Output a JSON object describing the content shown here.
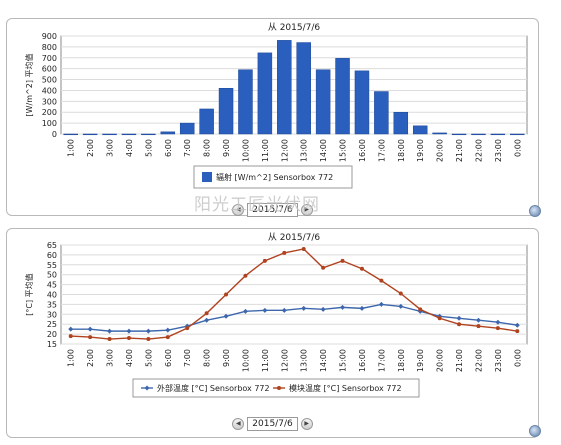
{
  "chart_data": [
    {
      "type": "bar",
      "title": "从 2015/7/6",
      "ylabel": "[W/m^2] 平均值",
      "ylim": [
        0,
        900
      ],
      "yticks": [
        0,
        100,
        200,
        300,
        400,
        500,
        600,
        700,
        800,
        900
      ],
      "categories": [
        "1:00",
        "2:00",
        "3:00",
        "4:00",
        "5:00",
        "6:00",
        "7:00",
        "8:00",
        "9:00",
        "10:00",
        "11:00",
        "12:00",
        "13:00",
        "14:00",
        "15:00",
        "16:00",
        "17:00",
        "18:00",
        "19:00",
        "20:00",
        "21:00",
        "22:00",
        "23:00",
        "0:00"
      ],
      "series": [
        {
          "name": "辐射 [W/m^2] Sensorbox 772",
          "color": "#2a5fbd",
          "values": [
            0,
            0,
            0,
            0,
            0,
            20,
            100,
            230,
            420,
            590,
            745,
            860,
            840,
            590,
            695,
            580,
            390,
            200,
            75,
            10,
            0,
            0,
            0,
            0
          ]
        }
      ],
      "grid": true,
      "legend": "bottom"
    },
    {
      "type": "line",
      "title": "从 2015/7/6",
      "ylabel": "[°C] 平均值",
      "ylim": [
        15,
        65
      ],
      "yticks": [
        15,
        20,
        25,
        30,
        35,
        40,
        45,
        50,
        55,
        60,
        65
      ],
      "categories": [
        "1:00",
        "2:00",
        "3:00",
        "4:00",
        "5:00",
        "6:00",
        "7:00",
        "8:00",
        "9:00",
        "10:00",
        "11:00",
        "12:00",
        "13:00",
        "14:00",
        "15:00",
        "16:00",
        "17:00",
        "18:00",
        "19:00",
        "20:00",
        "21:00",
        "22:00",
        "23:00",
        "0:00"
      ],
      "series": [
        {
          "name": "外部温度 [°C] Sensorbox 772",
          "color": "#3d67ad",
          "marker": "diamond",
          "values": [
            22.5,
            22.5,
            21.5,
            21.5,
            21.5,
            22,
            24,
            27,
            29,
            31.5,
            32,
            32,
            33,
            32.5,
            33.5,
            33,
            35,
            34,
            31.5,
            29,
            28,
            27,
            26,
            24.5
          ]
        },
        {
          "name": "模块温度 [°C] Sensorbox 772",
          "color": "#b0431f",
          "marker": "circle",
          "values": [
            19,
            18.5,
            17.5,
            18,
            17.5,
            18.5,
            23,
            30.5,
            40,
            49.5,
            57,
            61,
            63,
            53.5,
            57,
            53,
            47,
            40.5,
            32.5,
            28,
            25,
            24,
            23,
            21.5
          ]
        }
      ],
      "grid": true,
      "legend": "bottom"
    }
  ],
  "nav1": {
    "date": "2015/7/6",
    "prev": "◀",
    "next": "▶"
  },
  "nav2": {
    "date": "2015/7/6",
    "prev": "◀",
    "next": "▶"
  },
  "watermark": "阳光工匠光伏网"
}
